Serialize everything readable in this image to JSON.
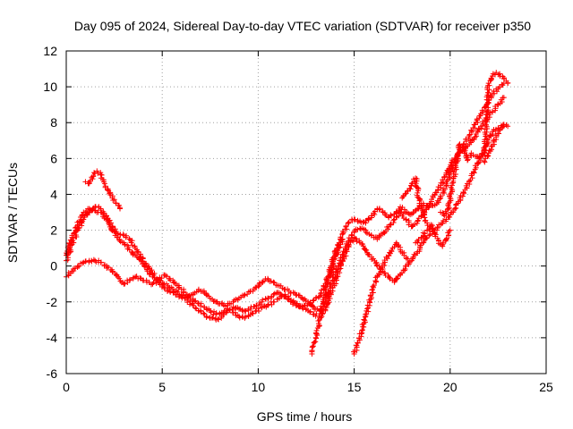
{
  "chart_data": {
    "type": "scatter",
    "title": "Day 095 of 2024, Sidereal Day-to-day VTEC variation (SDTVAR) for receiver p350",
    "xlabel": "GPS time / hours",
    "ylabel": "SDTVAR / TECUs",
    "xlim": [
      0,
      25
    ],
    "ylim": [
      -6,
      12
    ],
    "xticks": [
      0,
      5,
      10,
      15,
      20,
      25
    ],
    "yticks": [
      -6,
      -4,
      -2,
      0,
      2,
      4,
      6,
      8,
      10,
      12
    ],
    "grid": true,
    "marker": "+",
    "color": "#ff0000",
    "series": [
      {
        "x": [
          0.0,
          0.3,
          0.6,
          0.9,
          1.2,
          1.5,
          1.8,
          2.1,
          2.4,
          2.7,
          3.0,
          3.3,
          3.6,
          3.9,
          4.2,
          4.5,
          4.8,
          5.1,
          5.4,
          5.7,
          6.0,
          6.3,
          6.6,
          6.9,
          7.2,
          7.5,
          7.8,
          8.1,
          8.4,
          8.7,
          9.0,
          9.3,
          9.6,
          9.9,
          10.2,
          10.5,
          10.8,
          11.1,
          11.4,
          11.7,
          12.0,
          12.3,
          12.6,
          12.9,
          13.2,
          13.5,
          13.8,
          14.1,
          14.4,
          14.7,
          15.0,
          15.3,
          15.6,
          15.9,
          16.2,
          16.5,
          16.8,
          17.1,
          17.4,
          17.7,
          18.0,
          18.3,
          18.6,
          18.9,
          19.2,
          19.5,
          19.8,
          20.1,
          20.4,
          20.7,
          21.0,
          21.3,
          21.6,
          21.9,
          22.2,
          22.5,
          22.8
        ],
        "y": [
          0.3,
          1.2,
          2.0,
          2.6,
          3.0,
          3.3,
          3.2,
          2.8,
          2.2,
          1.8,
          1.7,
          1.5,
          1.0,
          0.5,
          0.0,
          -0.4,
          -0.9,
          -1.2,
          -1.4,
          -1.6,
          -1.7,
          -1.9,
          -2.2,
          -2.5,
          -2.7,
          -2.9,
          -3.0,
          -2.8,
          -2.5,
          -2.3,
          -2.4,
          -2.5,
          -2.4,
          -2.2,
          -2.0,
          -1.8,
          -1.6,
          -1.5,
          -1.7,
          -2.0,
          -2.2,
          -2.3,
          -2.1,
          -1.9,
          -1.7,
          -1.0,
          0.0,
          1.0,
          1.8,
          2.4,
          2.6,
          2.5,
          2.4,
          2.8,
          3.2,
          3.0,
          2.7,
          2.9,
          3.3,
          3.0,
          2.9,
          3.2,
          3.5,
          3.3,
          3.4,
          3.8,
          4.5,
          5.5,
          6.2,
          6.8,
          7.3,
          7.9,
          8.5,
          9.0,
          9.6,
          9.9,
          10.2
        ]
      },
      {
        "x": [
          0.0,
          0.3,
          0.6,
          0.9,
          1.2,
          1.5,
          1.8,
          2.1,
          2.4,
          2.7,
          3.0,
          3.3,
          3.6,
          3.9,
          4.2,
          4.5,
          4.8,
          5.1,
          5.4,
          5.7,
          6.0,
          6.3,
          6.6,
          6.9,
          7.2,
          7.5,
          7.8,
          8.1,
          8.4,
          8.7,
          9.0,
          9.3,
          9.6,
          9.9,
          10.2,
          10.5,
          10.8,
          11.1,
          11.4,
          11.7,
          12.0,
          12.3,
          12.6,
          12.9,
          13.2,
          13.5,
          13.8,
          14.1,
          14.4,
          14.7,
          15.0,
          15.3,
          15.6,
          15.9,
          16.2,
          16.5,
          16.8,
          17.1,
          17.4,
          17.7,
          18.0,
          18.3,
          18.6,
          18.9,
          19.2,
          19.5,
          19.8,
          20.1,
          20.4,
          20.7,
          21.0,
          21.3,
          21.6,
          21.9,
          22.2,
          22.5,
          22.8
        ],
        "y": [
          0.6,
          1.6,
          2.3,
          3.0,
          3.2,
          3.1,
          3.0,
          2.6,
          2.0,
          1.6,
          1.3,
          0.9,
          0.6,
          0.3,
          -0.2,
          -0.6,
          -0.8,
          -1.0,
          -1.2,
          -1.4,
          -1.6,
          -1.8,
          -1.6,
          -1.3,
          -1.5,
          -1.8,
          -2.0,
          -2.1,
          -2.2,
          -2.0,
          -1.8,
          -1.6,
          -1.4,
          -1.2,
          -0.9,
          -0.7,
          -0.9,
          -1.1,
          -1.3,
          -1.5,
          -1.6,
          -1.8,
          -2.0,
          -2.3,
          -2.5,
          -2.0,
          -1.0,
          -0.2,
          0.6,
          1.4,
          1.9,
          2.1,
          2.0,
          1.7,
          1.5,
          1.8,
          2.2,
          2.6,
          3.0,
          2.6,
          2.2,
          2.5,
          2.9,
          3.4,
          4.0,
          4.5,
          5.2,
          5.8,
          6.2,
          6.5,
          6.8,
          7.2,
          7.8,
          8.2,
          8.6,
          9.0,
          9.4
        ]
      },
      {
        "x": [
          0.0,
          0.3,
          0.6,
          0.9,
          1.2,
          1.5,
          1.8,
          2.1,
          2.4,
          2.7,
          3.0,
          3.3,
          3.6,
          3.9,
          4.2,
          4.5,
          4.8,
          5.1,
          5.4,
          5.7,
          6.0,
          6.3,
          6.6,
          6.9,
          7.2,
          7.5,
          7.8,
          8.1,
          8.4,
          8.7,
          9.0,
          9.3,
          9.6,
          9.9,
          10.2,
          10.5,
          10.8,
          11.1,
          11.4,
          11.7,
          12.0,
          12.3,
          12.6,
          12.9,
          13.2,
          13.5,
          13.8,
          14.1,
          14.4,
          14.7,
          15.0,
          15.3,
          15.6,
          15.9,
          16.2,
          16.5,
          16.8,
          17.1,
          17.4,
          17.7,
          18.0,
          18.3,
          18.6,
          18.9,
          19.2,
          19.5,
          19.8,
          20.1,
          20.4,
          20.7,
          21.0,
          21.3,
          21.6,
          21.9,
          22.2,
          22.5,
          22.8
        ],
        "y": [
          -0.6,
          -0.3,
          0.0,
          0.2,
          0.3,
          0.3,
          0.2,
          0.0,
          -0.3,
          -0.6,
          -1.0,
          -0.8,
          -0.6,
          -0.7,
          -0.9,
          -1.0,
          -0.8,
          -0.5,
          -0.7,
          -1.0,
          -1.3,
          -1.6,
          -1.9,
          -2.1,
          -2.3,
          -2.5,
          -2.7,
          -2.6,
          -2.4,
          -2.6,
          -2.8,
          -2.9,
          -2.7,
          -2.5,
          -2.3,
          -2.2,
          -2.0,
          -1.8,
          -1.6,
          -1.9,
          -2.1,
          -2.3,
          -2.5,
          -2.7,
          -2.8,
          -2.5,
          -1.5,
          -0.6,
          0.3,
          1.1,
          1.6,
          1.3,
          0.9,
          0.5,
          0.0,
          -0.3,
          -0.6,
          -0.9,
          -0.5,
          0.0,
          0.3,
          0.8,
          1.3,
          1.7,
          2.0,
          2.3,
          2.6,
          3.0,
          3.5,
          4.1,
          4.7,
          5.4,
          6.1,
          6.8,
          7.5,
          7.7,
          7.8
        ]
      },
      {
        "x": [
          1.0,
          1.2,
          1.4,
          1.6,
          1.8,
          2.0,
          2.2,
          2.4,
          2.6,
          2.8
        ],
        "y": [
          4.7,
          4.6,
          5.0,
          5.3,
          5.1,
          4.6,
          4.2,
          3.8,
          3.5,
          3.2
        ]
      },
      {
        "x": [
          12.8,
          13.0,
          13.2,
          13.4,
          13.6,
          13.8,
          14.0,
          14.2,
          14.4
        ],
        "y": [
          -4.9,
          -4.0,
          -3.0,
          -2.0,
          -1.0,
          -0.3,
          0.4,
          1.0,
          1.5
        ]
      },
      {
        "x": [
          15.0,
          15.2,
          15.4,
          15.6,
          15.8,
          16.0,
          16.2,
          16.4,
          16.6,
          16.8,
          17.0,
          17.2,
          17.4,
          17.6,
          17.8
        ],
        "y": [
          -4.9,
          -4.3,
          -3.6,
          -2.8,
          -2.0,
          -1.2,
          -0.6,
          -0.2,
          0.2,
          0.6,
          1.0,
          1.3,
          0.9,
          0.6,
          0.4
        ]
      },
      {
        "x": [
          17.5,
          17.8,
          18.0,
          18.2,
          18.4,
          18.6,
          18.8,
          19.0,
          19.2
        ],
        "y": [
          3.8,
          4.2,
          4.6,
          4.9,
          3.5,
          3.0,
          2.4,
          2.2,
          2.0
        ]
      },
      {
        "x": [
          18.2,
          18.5,
          18.8,
          19.0,
          19.2,
          19.4,
          19.6,
          19.8,
          20.0
        ],
        "y": [
          1.3,
          1.6,
          2.0,
          2.3,
          1.8,
          1.4,
          1.1,
          1.5,
          2.0
        ]
      },
      {
        "x": [
          19.5,
          19.7,
          19.9,
          20.1,
          20.3,
          20.5,
          20.7,
          20.9,
          21.1
        ],
        "y": [
          3.0,
          2.8,
          3.2,
          4.5,
          5.5,
          6.8,
          6.5,
          5.9,
          6.3
        ]
      },
      {
        "x": [
          21.2,
          21.5,
          21.8,
          22.0,
          22.2,
          22.4,
          22.6,
          22.8,
          23.0
        ],
        "y": [
          6.2,
          6.0,
          6.3,
          10.2,
          10.6,
          10.8,
          10.6,
          10.5,
          10.2
        ]
      },
      {
        "x": [
          21.8,
          22.0,
          22.2,
          22.4,
          22.6,
          22.8,
          23.0
        ],
        "y": [
          5.8,
          6.3,
          6.7,
          7.2,
          7.6,
          7.9,
          7.8
        ]
      }
    ]
  }
}
